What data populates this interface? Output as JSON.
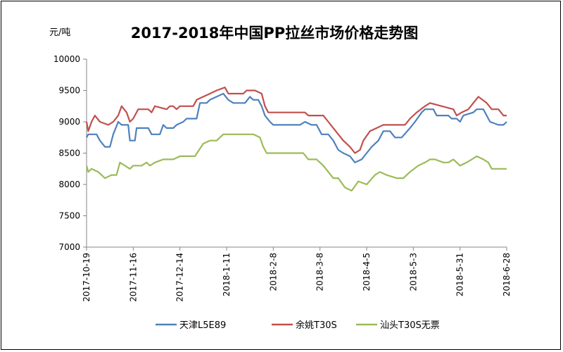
{
  "chart_data": {
    "type": "line",
    "title": "2017-2018年中国PP拉丝市场价格走势图",
    "ylabel": "元/吨",
    "xlabel": "",
    "ylim": [
      7000,
      10000
    ],
    "yticks": [
      7000,
      7500,
      8000,
      8500,
      9000,
      9500,
      10000
    ],
    "xlim": [
      "2017-10-19",
      "2018-06-28"
    ],
    "xticks": [
      "2017-10-19",
      "2017-11-16",
      "2017-12-14",
      "2018-1-11",
      "2018-2-8",
      "2018-3-8",
      "2018-4-5",
      "2018-5-3",
      "2018-5-31",
      "2018-6-28"
    ],
    "grid": false,
    "legend_position": "bottom",
    "series": [
      {
        "name": "天津L5E89",
        "color": "#4F81BD",
        "points": [
          [
            "2017-10-19",
            8750
          ],
          [
            "2017-10-20",
            8800
          ],
          [
            "2017-10-25",
            8800
          ],
          [
            "2017-10-27",
            8700
          ],
          [
            "2017-10-30",
            8600
          ],
          [
            "2017-11-02",
            8600
          ],
          [
            "2017-11-04",
            8800
          ],
          [
            "2017-11-07",
            9000
          ],
          [
            "2017-11-09",
            8950
          ],
          [
            "2017-11-13",
            8950
          ],
          [
            "2017-11-14",
            8700
          ],
          [
            "2017-11-17",
            8700
          ],
          [
            "2017-11-18",
            8900
          ],
          [
            "2017-11-21",
            8900
          ],
          [
            "2017-11-25",
            8900
          ],
          [
            "2017-11-27",
            8800
          ],
          [
            "2017-12-02",
            8800
          ],
          [
            "2017-12-04",
            8950
          ],
          [
            "2017-12-06",
            8900
          ],
          [
            "2017-12-10",
            8900
          ],
          [
            "2017-12-12",
            8950
          ],
          [
            "2017-12-16",
            9000
          ],
          [
            "2017-12-18",
            9050
          ],
          [
            "2017-12-24",
            9050
          ],
          [
            "2017-12-26",
            9300
          ],
          [
            "2017-12-30",
            9300
          ],
          [
            "2018-01-01",
            9350
          ],
          [
            "2018-01-05",
            9400
          ],
          [
            "2018-01-09",
            9450
          ],
          [
            "2018-01-12",
            9350
          ],
          [
            "2018-01-15",
            9300
          ],
          [
            "2018-01-22",
            9300
          ],
          [
            "2018-01-25",
            9400
          ],
          [
            "2018-01-27",
            9350
          ],
          [
            "2018-01-30",
            9350
          ],
          [
            "2018-02-01",
            9250
          ],
          [
            "2018-02-03",
            9100
          ],
          [
            "2018-02-06",
            9000
          ],
          [
            "2018-02-08",
            8950
          ],
          [
            "2018-02-24",
            8950
          ],
          [
            "2018-02-27",
            9000
          ],
          [
            "2018-03-03",
            8950
          ],
          [
            "2018-03-06",
            8950
          ],
          [
            "2018-03-09",
            8800
          ],
          [
            "2018-03-13",
            8800
          ],
          [
            "2018-03-16",
            8700
          ],
          [
            "2018-03-19",
            8550
          ],
          [
            "2018-03-22",
            8500
          ],
          [
            "2018-03-26",
            8450
          ],
          [
            "2018-03-29",
            8350
          ],
          [
            "2018-04-02",
            8400
          ],
          [
            "2018-04-05",
            8500
          ],
          [
            "2018-04-08",
            8600
          ],
          [
            "2018-04-12",
            8700
          ],
          [
            "2018-04-15",
            8850
          ],
          [
            "2018-04-19",
            8850
          ],
          [
            "2018-04-22",
            8750
          ],
          [
            "2018-04-26",
            8750
          ],
          [
            "2018-05-01",
            8900
          ],
          [
            "2018-05-04",
            9000
          ],
          [
            "2018-05-08",
            9150
          ],
          [
            "2018-05-10",
            9200
          ],
          [
            "2018-05-15",
            9200
          ],
          [
            "2018-05-17",
            9100
          ],
          [
            "2018-05-24",
            9100
          ],
          [
            "2018-05-26",
            9050
          ],
          [
            "2018-05-29",
            9050
          ],
          [
            "2018-05-31",
            9000
          ],
          [
            "2018-06-02",
            9100
          ],
          [
            "2018-06-08",
            9150
          ],
          [
            "2018-06-10",
            9200
          ],
          [
            "2018-06-14",
            9200
          ],
          [
            "2018-06-16",
            9100
          ],
          [
            "2018-06-18",
            9000
          ],
          [
            "2018-06-23",
            8950
          ],
          [
            "2018-06-26",
            8950
          ],
          [
            "2018-06-28",
            9000
          ]
        ]
      },
      {
        "name": "余姚T30S",
        "color": "#C0504D",
        "points": [
          [
            "2017-10-19",
            9000
          ],
          [
            "2017-10-20",
            8850
          ],
          [
            "2017-10-22",
            9000
          ],
          [
            "2017-10-24",
            9100
          ],
          [
            "2017-10-27",
            9000
          ],
          [
            "2017-11-01",
            8950
          ],
          [
            "2017-11-04",
            9000
          ],
          [
            "2017-11-07",
            9100
          ],
          [
            "2017-11-09",
            9250
          ],
          [
            "2017-11-12",
            9150
          ],
          [
            "2017-11-14",
            9000
          ],
          [
            "2017-11-16",
            9050
          ],
          [
            "2017-11-19",
            9200
          ],
          [
            "2017-11-25",
            9200
          ],
          [
            "2017-11-27",
            9150
          ],
          [
            "2017-11-29",
            9250
          ],
          [
            "2017-12-06",
            9200
          ],
          [
            "2017-12-08",
            9250
          ],
          [
            "2017-12-10",
            9250
          ],
          [
            "2017-12-12",
            9200
          ],
          [
            "2017-12-14",
            9250
          ],
          [
            "2017-12-22",
            9250
          ],
          [
            "2017-12-24",
            9350
          ],
          [
            "2017-12-28",
            9400
          ],
          [
            "2018-01-01",
            9450
          ],
          [
            "2018-01-05",
            9500
          ],
          [
            "2018-01-10",
            9550
          ],
          [
            "2018-01-12",
            9450
          ],
          [
            "2018-01-21",
            9450
          ],
          [
            "2018-01-23",
            9500
          ],
          [
            "2018-01-28",
            9500
          ],
          [
            "2018-02-01",
            9450
          ],
          [
            "2018-02-03",
            9250
          ],
          [
            "2018-02-05",
            9150
          ],
          [
            "2018-02-27",
            9150
          ],
          [
            "2018-03-01",
            9100
          ],
          [
            "2018-03-10",
            9100
          ],
          [
            "2018-03-13",
            9000
          ],
          [
            "2018-03-16",
            8900
          ],
          [
            "2018-03-19",
            8800
          ],
          [
            "2018-03-22",
            8700
          ],
          [
            "2018-03-26",
            8600
          ],
          [
            "2018-03-29",
            8500
          ],
          [
            "2018-04-01",
            8550
          ],
          [
            "2018-04-03",
            8700
          ],
          [
            "2018-04-07",
            8850
          ],
          [
            "2018-04-11",
            8900
          ],
          [
            "2018-04-15",
            8950
          ],
          [
            "2018-04-28",
            8950
          ],
          [
            "2018-05-01",
            9050
          ],
          [
            "2018-05-05",
            9150
          ],
          [
            "2018-05-10",
            9250
          ],
          [
            "2018-05-13",
            9300
          ],
          [
            "2018-05-20",
            9250
          ],
          [
            "2018-05-27",
            9200
          ],
          [
            "2018-05-29",
            9100
          ],
          [
            "2018-06-01",
            9150
          ],
          [
            "2018-06-05",
            9200
          ],
          [
            "2018-06-08",
            9300
          ],
          [
            "2018-06-11",
            9400
          ],
          [
            "2018-06-16",
            9300
          ],
          [
            "2018-06-19",
            9200
          ],
          [
            "2018-06-23",
            9200
          ],
          [
            "2018-06-26",
            9100
          ],
          [
            "2018-06-28",
            9100
          ]
        ]
      },
      {
        "name": "汕头T30S无票",
        "color": "#9BBB59",
        "points": [
          [
            "2017-10-19",
            8300
          ],
          [
            "2017-10-20",
            8200
          ],
          [
            "2017-10-22",
            8250
          ],
          [
            "2017-10-26",
            8200
          ],
          [
            "2017-10-30",
            8100
          ],
          [
            "2017-11-03",
            8150
          ],
          [
            "2017-11-06",
            8150
          ],
          [
            "2017-11-08",
            8350
          ],
          [
            "2017-11-11",
            8300
          ],
          [
            "2017-11-14",
            8250
          ],
          [
            "2017-11-16",
            8300
          ],
          [
            "2017-11-21",
            8300
          ],
          [
            "2017-11-24",
            8350
          ],
          [
            "2017-11-26",
            8300
          ],
          [
            "2017-11-29",
            8350
          ],
          [
            "2017-12-04",
            8400
          ],
          [
            "2017-12-10",
            8400
          ],
          [
            "2017-12-14",
            8450
          ],
          [
            "2017-12-18",
            8450
          ],
          [
            "2017-12-23",
            8450
          ],
          [
            "2017-12-28",
            8650
          ],
          [
            "2018-01-01",
            8700
          ],
          [
            "2018-01-05",
            8700
          ],
          [
            "2018-01-09",
            8800
          ],
          [
            "2018-01-12",
            8800
          ],
          [
            "2018-01-27",
            8800
          ],
          [
            "2018-01-31",
            8750
          ],
          [
            "2018-02-02",
            8600
          ],
          [
            "2018-02-04",
            8500
          ],
          [
            "2018-02-26",
            8500
          ],
          [
            "2018-03-01",
            8400
          ],
          [
            "2018-03-06",
            8400
          ],
          [
            "2018-03-10",
            8300
          ],
          [
            "2018-03-16",
            8100
          ],
          [
            "2018-03-19",
            8100
          ],
          [
            "2018-03-23",
            7950
          ],
          [
            "2018-03-27",
            7900
          ],
          [
            "2018-03-31",
            8050
          ],
          [
            "2018-04-05",
            8000
          ],
          [
            "2018-04-10",
            8150
          ],
          [
            "2018-04-13",
            8200
          ],
          [
            "2018-04-17",
            8150
          ],
          [
            "2018-04-23",
            8100
          ],
          [
            "2018-04-27",
            8100
          ],
          [
            "2018-05-01",
            8200
          ],
          [
            "2018-05-06",
            8300
          ],
          [
            "2018-05-10",
            8350
          ],
          [
            "2018-05-13",
            8400
          ],
          [
            "2018-05-16",
            8400
          ],
          [
            "2018-05-21",
            8350
          ],
          [
            "2018-05-24",
            8350
          ],
          [
            "2018-05-27",
            8400
          ],
          [
            "2018-05-31",
            8300
          ],
          [
            "2018-06-04",
            8350
          ],
          [
            "2018-06-07",
            8400
          ],
          [
            "2018-06-10",
            8450
          ],
          [
            "2018-06-14",
            8400
          ],
          [
            "2018-06-17",
            8350
          ],
          [
            "2018-06-19",
            8250
          ],
          [
            "2018-06-23",
            8250
          ],
          [
            "2018-06-28",
            8250
          ]
        ]
      }
    ]
  }
}
